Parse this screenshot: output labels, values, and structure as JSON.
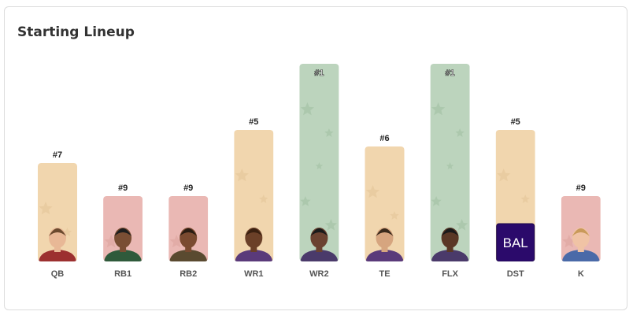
{
  "title": "Starting Lineup",
  "colors": {
    "tier_green": "#bcd4bd",
    "tier_tan": "#f1d6ae",
    "tier_red": "#eab8b4",
    "label": "#555555",
    "rank_text": "#222222",
    "dst_logo": "#2b0a6b"
  },
  "chart_data": {
    "type": "bar",
    "title": "Starting Lineup",
    "xlabel": "",
    "ylabel": "",
    "ylim": [
      0,
      10
    ],
    "categories": [
      "QB",
      "RB1",
      "RB2",
      "WR1",
      "WR2",
      "TE",
      "FLX",
      "DST",
      "K"
    ],
    "values": [
      7,
      9,
      9,
      5,
      1,
      6,
      1,
      5,
      9
    ],
    "value_labels": [
      "#7",
      "#9",
      "#9",
      "#5",
      "#1",
      "#6",
      "#1",
      "#5",
      "#9"
    ],
    "tiers": [
      "tan",
      "red",
      "red",
      "tan",
      "green",
      "tan",
      "green",
      "tan",
      "red"
    ],
    "images": [
      "player-photo",
      "player-photo",
      "player-photo",
      "player-photo",
      "player-photo",
      "player-photo",
      "player-photo",
      "team-logo",
      "player-photo"
    ],
    "logo_text": [
      "",
      "",
      "",
      "",
      "",
      "",
      "",
      "BAL",
      ""
    ]
  }
}
